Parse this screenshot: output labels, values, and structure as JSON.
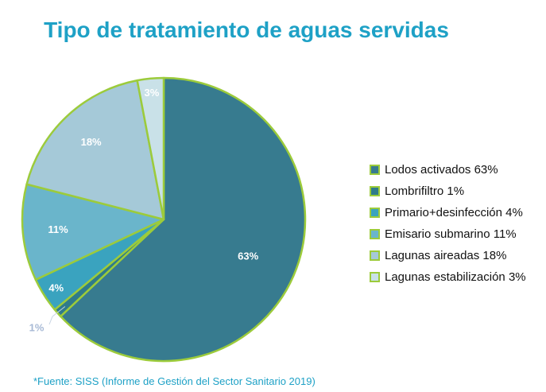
{
  "chart_data": {
    "type": "pie",
    "title": "Tipo de tratamiento de aguas servidas",
    "categories": [
      "Lodos activados",
      "Lombrifiltro",
      "Primario+desinfección",
      "Emisario submarino",
      "Lagunas aireadas",
      "Lagunas estabilización"
    ],
    "values": [
      63,
      1,
      4,
      11,
      18,
      3
    ],
    "data_labels": [
      "63%",
      "1%",
      "4%",
      "11%",
      "18%",
      "3%"
    ],
    "legend_labels": [
      "Lodos activados 63%",
      "Lombrifiltro 1%",
      "Primario+desinfección 4%",
      "Emisario submarino 11%",
      "Lagunas aireadas 18%",
      "Lagunas estabilización 3%"
    ],
    "colors": [
      "#377b8f",
      "#2f7b8b",
      "#3aa3bf",
      "#6ab5cb",
      "#a5c9d8",
      "#c9e1e8"
    ],
    "label_colors": [
      "#ffffff",
      "#a7b9d5",
      "#ffffff",
      "#ffffff",
      "#ffffff",
      "#ffffff"
    ],
    "border_color": "#9ccb3b",
    "legend_position": "right",
    "start": "top",
    "direction": "clockwise"
  },
  "source_note": "*Fuente: SISS (Informe de Gestión del Sector Sanitario 2019)"
}
